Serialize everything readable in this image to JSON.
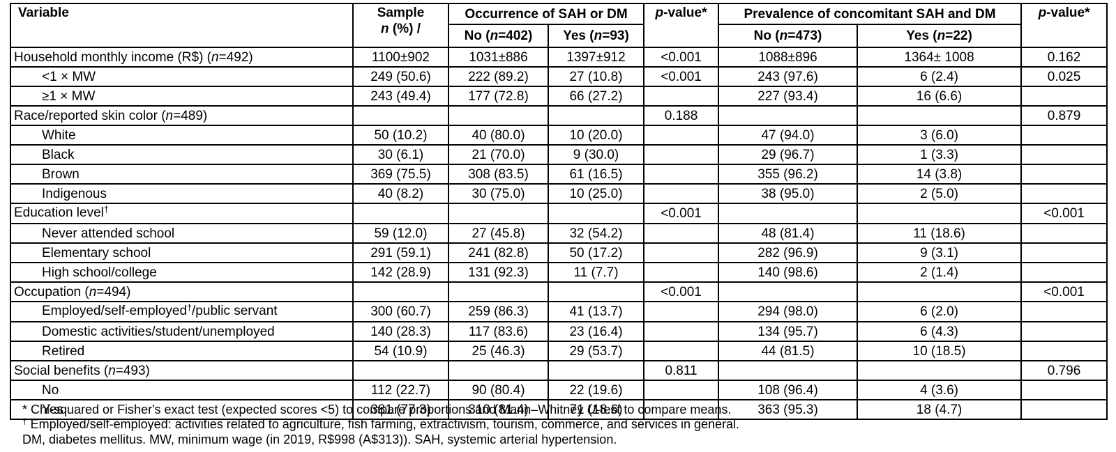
{
  "table": {
    "header": {
      "variable": "Variable",
      "sample_line1": "Sample",
      "sample_line2": "n (%) /",
      "group_occurrence": "Occurrence of SAH or DM",
      "group_prevalence": "Prevalence of concomitant SAH and DM",
      "pvalue_occurrence": "p-value*",
      "pvalue_prevalence": "p-value*",
      "sub_no_occurrence": "No (n=402)",
      "sub_yes_occurrence": "Yes (n=93)",
      "sub_no_prevalence": "No (n=473)",
      "sub_yes_prevalence": "Yes (n=22)"
    },
    "rows": [
      {
        "indent": false,
        "cells": [
          "Household monthly income (R$) (n=492)",
          "1100±902",
          "1031±886",
          "1397±912",
          "<0.001",
          "1088±896",
          "1364± 1008",
          "0.162"
        ]
      },
      {
        "indent": true,
        "cells": [
          "<1 × MW",
          "249 (50.6)",
          "222 (89.2)",
          "27 (10.8)",
          "<0.001",
          "243 (97.6)",
          "6 (2.4)",
          "0.025"
        ]
      },
      {
        "indent": true,
        "cells": [
          "≥1 × MW",
          "243 (49.4)",
          "177 (72.8)",
          "66 (27.2)",
          "",
          "227 (93.4)",
          "16 (6.6)",
          ""
        ]
      },
      {
        "indent": false,
        "cells": [
          "Race/reported skin color (n=489)",
          "",
          "",
          "",
          "0.188",
          "",
          "",
          "0.879"
        ]
      },
      {
        "indent": true,
        "cells": [
          "White",
          "50 (10.2)",
          "40 (80.0)",
          "10 (20.0)",
          "",
          "47 (94.0)",
          "3 (6.0)",
          ""
        ]
      },
      {
        "indent": true,
        "cells": [
          "Black",
          "30 (6.1)",
          "21 (70.0)",
          "9 (30.0)",
          "",
          "29 (96.7)",
          "1 (3.3)",
          ""
        ]
      },
      {
        "indent": true,
        "cells": [
          "Brown",
          "369 (75.5)",
          "308 (83.5)",
          "61 (16.5)",
          "",
          "355 (96.2)",
          "14 (3.8)",
          ""
        ]
      },
      {
        "indent": true,
        "cells": [
          "Indigenous",
          "40 (8.2)",
          "30 (75.0)",
          "10 (25.0)",
          "",
          "38 (95.0)",
          "2 (5.0)",
          ""
        ]
      },
      {
        "indent": false,
        "cells": [
          "Education level†",
          "",
          "",
          "",
          "<0.001",
          "",
          "",
          "<0.001"
        ]
      },
      {
        "indent": true,
        "cells": [
          "Never attended school",
          "59 (12.0)",
          "27 (45.8)",
          "32 (54.2)",
          "",
          "48 (81.4)",
          "11 (18.6)",
          ""
        ]
      },
      {
        "indent": true,
        "cells": [
          "Elementary school",
          "291 (59.1)",
          "241 (82.8)",
          "50 (17.2)",
          "",
          "282 (96.9)",
          "9 (3.1)",
          ""
        ]
      },
      {
        "indent": true,
        "cells": [
          "High school/college",
          "142 (28.9)",
          "131 (92.3)",
          "11 (7.7)",
          "",
          "140 (98.6)",
          "2 (1.4)",
          ""
        ]
      },
      {
        "indent": false,
        "cells": [
          "Occupation (n=494)",
          "",
          "",
          "",
          "<0.001",
          "",
          "",
          "<0.001"
        ]
      },
      {
        "indent": true,
        "cells": [
          "Employed/self-employed†/public servant",
          "300 (60.7)",
          "259 (86.3)",
          "41 (13.7)",
          "",
          "294 (98.0)",
          "6 (2.0)",
          ""
        ]
      },
      {
        "indent": true,
        "cells": [
          "Domestic activities/student/unemployed",
          "140 (28.3)",
          "117 (83.6)",
          "23 (16.4)",
          "",
          "134 (95.7)",
          "6 (4.3)",
          ""
        ]
      },
      {
        "indent": true,
        "cells": [
          "Retired",
          "54 (10.9)",
          "25 (46.3)",
          "29 (53.7)",
          "",
          "44 (81.5)",
          "10 (18.5)",
          ""
        ]
      },
      {
        "indent": false,
        "cells": [
          "Social benefits (n=493)",
          "",
          "",
          "",
          "0.811",
          "",
          "",
          "0.796"
        ]
      },
      {
        "indent": true,
        "cells": [
          "No",
          "112 (22.7)",
          "90 (80.4)",
          "22 (19.6)",
          "",
          "108 (96.4)",
          "4 (3.6)",
          ""
        ]
      },
      {
        "indent": true,
        "cells": [
          "Yes",
          "381 (77.3)",
          "310 (81.4)",
          "71 (18.6)",
          "",
          "363 (95.3)",
          "18 (4.7)",
          ""
        ]
      }
    ]
  },
  "footnotes": [
    "* Chi-squared or Fisher's exact test (expected scores <5) to compare proportions and Mann–Whitney U-test to compare means.",
    "† Employed/self-employed: activities related to agriculture, fish farming, extractivism, tourism, commerce, and services in general.",
    "DM, diabetes mellitus. MW, minimum wage (in 2019, R$998 (A$313)). SAH, systemic arterial hypertension."
  ],
  "colors": {
    "border": "#000000",
    "text": "#000000",
    "background": "#ffffff"
  }
}
